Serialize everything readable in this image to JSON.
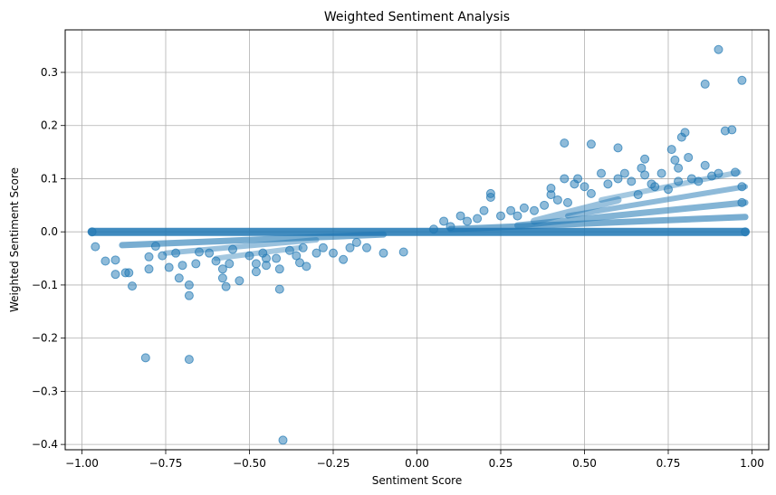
{
  "chart_data": {
    "type": "scatter",
    "title": "Weighted Sentiment Analysis",
    "xlabel": "Sentiment Score",
    "ylabel": "Weighted Sentiment Score",
    "xlim": [
      -1.05,
      1.05
    ],
    "ylim": [
      -0.41,
      0.38
    ],
    "xticks": [
      -1.0,
      -0.75,
      -0.5,
      -0.25,
      0.0,
      0.25,
      0.5,
      0.75,
      1.0
    ],
    "xtick_labels": [
      "−1.00",
      "−0.75",
      "−0.50",
      "−0.25",
      "0.00",
      "0.25",
      "0.50",
      "0.75",
      "1.00"
    ],
    "yticks": [
      -0.4,
      -0.3,
      -0.2,
      -0.1,
      0.0,
      0.1,
      0.2,
      0.3
    ],
    "ytick_labels": [
      "−0.4",
      "−0.3",
      "−0.2",
      "−0.1",
      "0.0",
      "0.1",
      "0.2",
      "0.3"
    ],
    "grid": true,
    "marker_color": "#1f77b4",
    "marker_alpha": 0.5,
    "series": [
      {
        "points": [
          [
            -0.97,
            0.0
          ],
          [
            -0.96,
            -0.028
          ],
          [
            -0.93,
            -0.055
          ],
          [
            -0.9,
            -0.053
          ],
          [
            -0.9,
            -0.08
          ],
          [
            -0.87,
            -0.077
          ],
          [
            -0.86,
            -0.077
          ],
          [
            -0.85,
            -0.102
          ],
          [
            -0.8,
            -0.07
          ],
          [
            -0.8,
            -0.047
          ],
          [
            -0.81,
            -0.237
          ],
          [
            -0.78,
            -0.027
          ],
          [
            -0.76,
            -0.045
          ],
          [
            -0.74,
            -0.067
          ],
          [
            -0.72,
            -0.04
          ],
          [
            -0.71,
            -0.087
          ],
          [
            -0.7,
            -0.063
          ],
          [
            -0.68,
            -0.1
          ],
          [
            -0.68,
            -0.12
          ],
          [
            -0.68,
            -0.24
          ],
          [
            -0.66,
            -0.06
          ],
          [
            -0.65,
            -0.038
          ],
          [
            -0.62,
            -0.04
          ],
          [
            -0.6,
            -0.055
          ],
          [
            -0.58,
            -0.07
          ],
          [
            -0.58,
            -0.087
          ],
          [
            -0.57,
            -0.103
          ],
          [
            -0.56,
            -0.06
          ],
          [
            -0.55,
            -0.033
          ],
          [
            -0.53,
            -0.092
          ],
          [
            -0.5,
            -0.045
          ],
          [
            -0.48,
            -0.06
          ],
          [
            -0.48,
            -0.075
          ],
          [
            -0.46,
            -0.04
          ],
          [
            -0.45,
            -0.05
          ],
          [
            -0.45,
            -0.063
          ],
          [
            -0.42,
            -0.05
          ],
          [
            -0.41,
            -0.07
          ],
          [
            -0.41,
            -0.108
          ],
          [
            -0.4,
            -0.392
          ],
          [
            -0.38,
            -0.035
          ],
          [
            -0.36,
            -0.045
          ],
          [
            -0.35,
            -0.058
          ],
          [
            -0.34,
            -0.03
          ],
          [
            -0.33,
            -0.065
          ],
          [
            -0.3,
            -0.04
          ],
          [
            -0.28,
            -0.03
          ],
          [
            -0.25,
            -0.04
          ],
          [
            -0.22,
            -0.052
          ],
          [
            -0.2,
            -0.03
          ],
          [
            -0.18,
            -0.02
          ],
          [
            -0.15,
            -0.03
          ],
          [
            -0.1,
            -0.04
          ],
          [
            -0.04,
            -0.038
          ],
          [
            0.05,
            0.005
          ],
          [
            0.08,
            0.02
          ],
          [
            0.1,
            0.01
          ],
          [
            0.13,
            0.03
          ],
          [
            0.15,
            0.02
          ],
          [
            0.18,
            0.025
          ],
          [
            0.2,
            0.04
          ],
          [
            0.22,
            0.065
          ],
          [
            0.22,
            0.072
          ],
          [
            0.25,
            0.03
          ],
          [
            0.28,
            0.04
          ],
          [
            0.3,
            0.03
          ],
          [
            0.32,
            0.045
          ],
          [
            0.35,
            0.04
          ],
          [
            0.38,
            0.05
          ],
          [
            0.4,
            0.07
          ],
          [
            0.4,
            0.082
          ],
          [
            0.42,
            0.06
          ],
          [
            0.44,
            0.1
          ],
          [
            0.44,
            0.167
          ],
          [
            0.45,
            0.055
          ],
          [
            0.47,
            0.09
          ],
          [
            0.48,
            0.1
          ],
          [
            0.5,
            0.085
          ],
          [
            0.52,
            0.072
          ],
          [
            0.52,
            0.165
          ],
          [
            0.55,
            0.11
          ],
          [
            0.57,
            0.09
          ],
          [
            0.6,
            0.1
          ],
          [
            0.6,
            0.158
          ],
          [
            0.62,
            0.11
          ],
          [
            0.64,
            0.095
          ],
          [
            0.66,
            0.07
          ],
          [
            0.67,
            0.12
          ],
          [
            0.68,
            0.107
          ],
          [
            0.68,
            0.137
          ],
          [
            0.7,
            0.09
          ],
          [
            0.71,
            0.085
          ],
          [
            0.73,
            0.11
          ],
          [
            0.75,
            0.08
          ],
          [
            0.76,
            0.155
          ],
          [
            0.77,
            0.135
          ],
          [
            0.78,
            0.12
          ],
          [
            0.78,
            0.095
          ],
          [
            0.79,
            0.178
          ],
          [
            0.8,
            0.187
          ],
          [
            0.81,
            0.14
          ],
          [
            0.82,
            0.1
          ],
          [
            0.84,
            0.095
          ],
          [
            0.86,
            0.125
          ],
          [
            0.86,
            0.278
          ],
          [
            0.88,
            0.105
          ],
          [
            0.9,
            0.343
          ],
          [
            0.9,
            0.11
          ],
          [
            0.92,
            0.19
          ],
          [
            0.94,
            0.192
          ],
          [
            0.95,
            0.112
          ],
          [
            0.97,
            0.285
          ],
          [
            0.97,
            0.085
          ],
          [
            0.97,
            0.055
          ],
          [
            0.98,
            0.0
          ]
        ]
      }
    ]
  }
}
